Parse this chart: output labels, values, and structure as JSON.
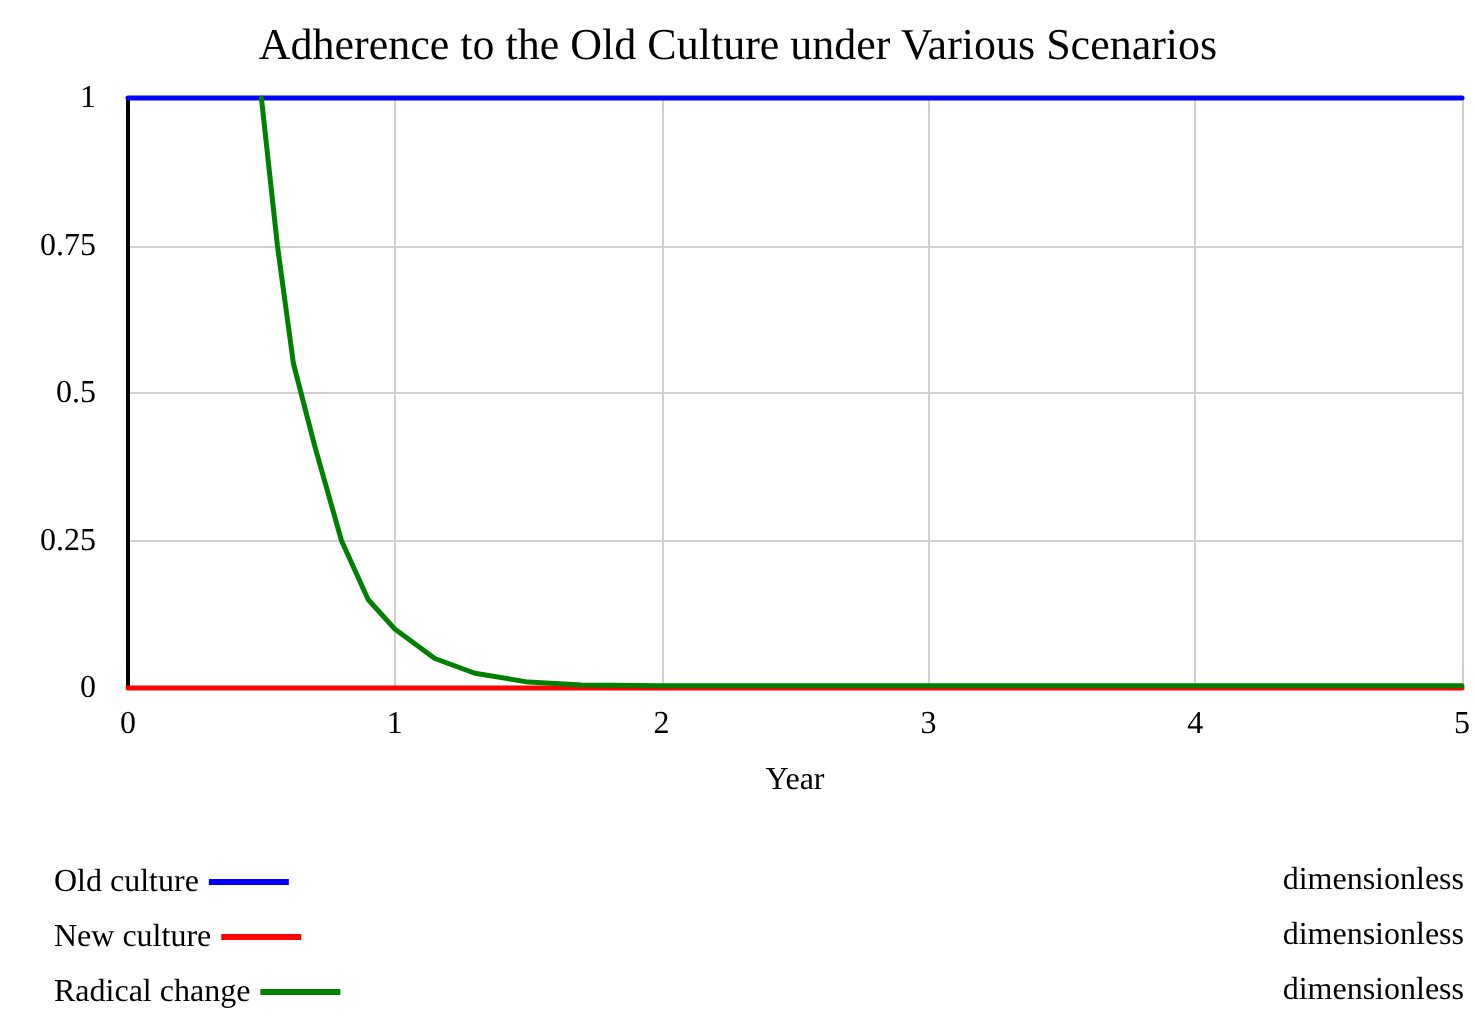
{
  "chart_data": {
    "type": "line",
    "title": "Adherence to the Old Culture under Various Scenarios",
    "xlabel": "Year",
    "xlim": [
      0,
      5
    ],
    "xticks": [
      0,
      1,
      2,
      3,
      4,
      5
    ],
    "ylim": [
      0,
      1
    ],
    "yticks": [
      0,
      0.25,
      0.5,
      0.75,
      1
    ],
    "grid": true,
    "legend": "bottom",
    "marker": "none",
    "line_style": "solid",
    "annotations": [
      "dimensionless",
      "dimensionless",
      "dimensionless"
    ],
    "series": [
      {
        "name": "Old culture",
        "color": "#0000ff",
        "x": [
          0,
          5
        ],
        "values": [
          1,
          1
        ]
      },
      {
        "name": "New culture",
        "color": "#ff0000",
        "x": [
          0,
          5
        ],
        "values": [
          0,
          0
        ]
      },
      {
        "name": "Radical change",
        "color": "#008000",
        "x": [
          0.5,
          0.56,
          0.62,
          0.7,
          0.8,
          0.9,
          1,
          1.15,
          1.3,
          1.5,
          1.7,
          2,
          3,
          4,
          5
        ],
        "values": [
          1,
          0.75,
          0.55,
          0.41,
          0.25,
          0.15,
          0.1,
          0.05,
          0.025,
          0.01,
          0.005,
          0.004,
          0.004,
          0.004,
          0.004
        ]
      }
    ]
  }
}
